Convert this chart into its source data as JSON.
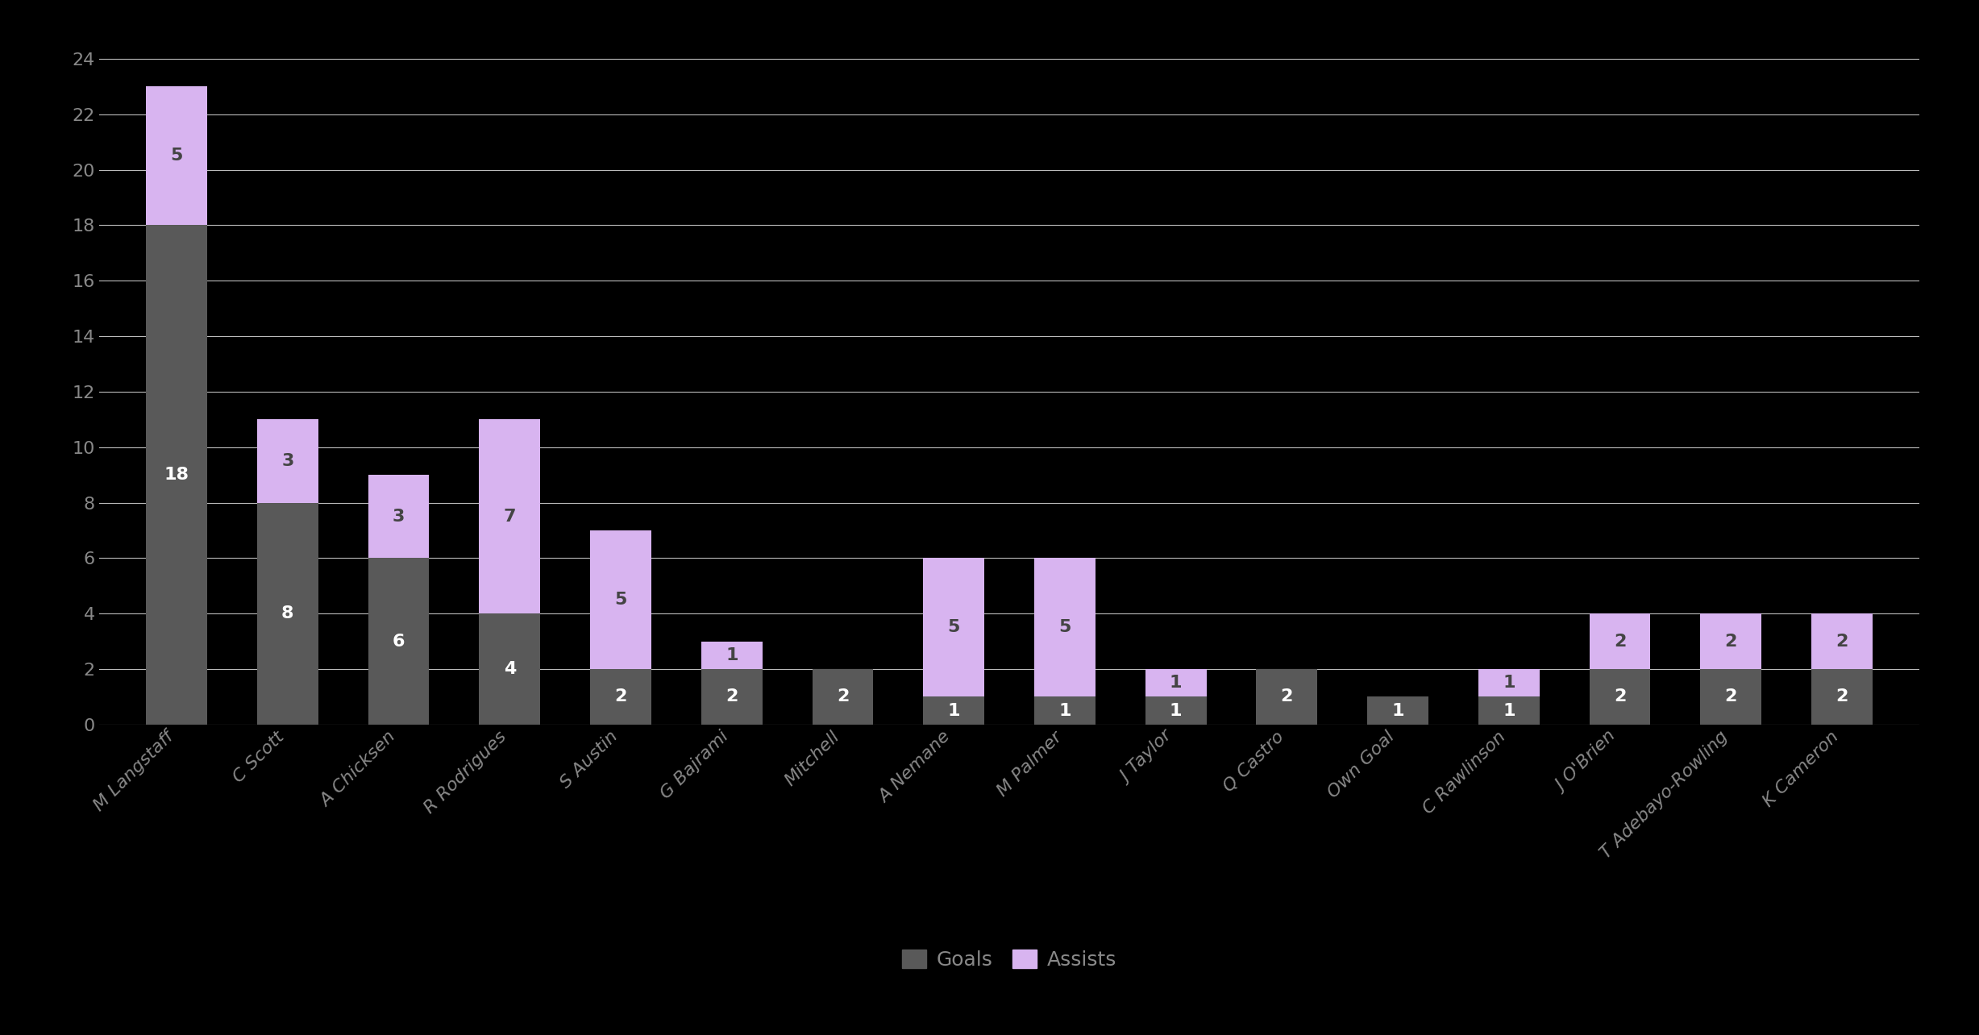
{
  "players": [
    "M Langstaff",
    "C Scott",
    "A Chicksen",
    "R Rodrigues",
    "S Austin",
    "G Bajrami",
    "Mitchell",
    "A Nemane",
    "M Palmer",
    "J Taylor",
    "Q Castro",
    "Own Goal",
    "C Rawlinson",
    "J O'Brien",
    "T Adebayo-Rowling",
    "K Cameron"
  ],
  "goals": [
    18,
    8,
    6,
    4,
    2,
    2,
    2,
    1,
    1,
    1,
    2,
    1,
    1,
    2,
    2,
    2
  ],
  "assists": [
    5,
    3,
    3,
    7,
    5,
    1,
    0,
    5,
    5,
    1,
    0,
    0,
    1,
    2,
    2,
    2
  ],
  "goals_color": "#595959",
  "assists_color": "#d8b4f0",
  "background_color": "#000000",
  "text_color": "#888888",
  "grid_color": "#bbbbbb",
  "label_color": "#888888",
  "ylim": [
    0,
    25
  ],
  "yticks": [
    0,
    2,
    4,
    6,
    8,
    10,
    12,
    14,
    16,
    18,
    20,
    22,
    24
  ],
  "bar_width": 0.55,
  "legend_goals": "Goals",
  "legend_assists": "Assists",
  "goals_label_color": "white",
  "assists_label_color": "#444444",
  "font_size_labels": 16,
  "font_size_ticks": 16
}
